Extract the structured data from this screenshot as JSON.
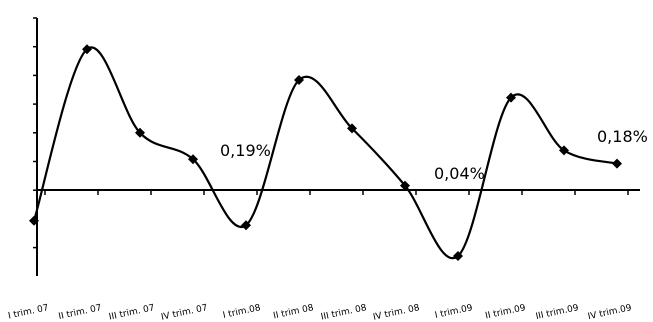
{
  "chart_data": {
    "type": "line",
    "categories": [
      "I trim. 07",
      "II trim. 07",
      "III trim. 07",
      "IV trim. 07",
      "I trim.08",
      "II trim 08",
      "III trim. 08",
      "IV trim. 08",
      "I trim.09",
      "II trim.09",
      "III trim.09",
      "IV trim.09"
    ],
    "series": [
      {
        "values": [
          -0.07,
          0.32,
          0.13,
          0.07,
          -0.08,
          0.25,
          0.14,
          0.01,
          -0.15,
          0.21,
          0.09,
          0.06
        ]
      }
    ],
    "annotations": [
      {
        "text": "0,19%"
      },
      {
        "text": "0,04%"
      },
      {
        "text": "0,18%"
      }
    ],
    "ylim": [
      -0.2,
      0.4
    ],
    "grid": false,
    "legend": "none"
  }
}
